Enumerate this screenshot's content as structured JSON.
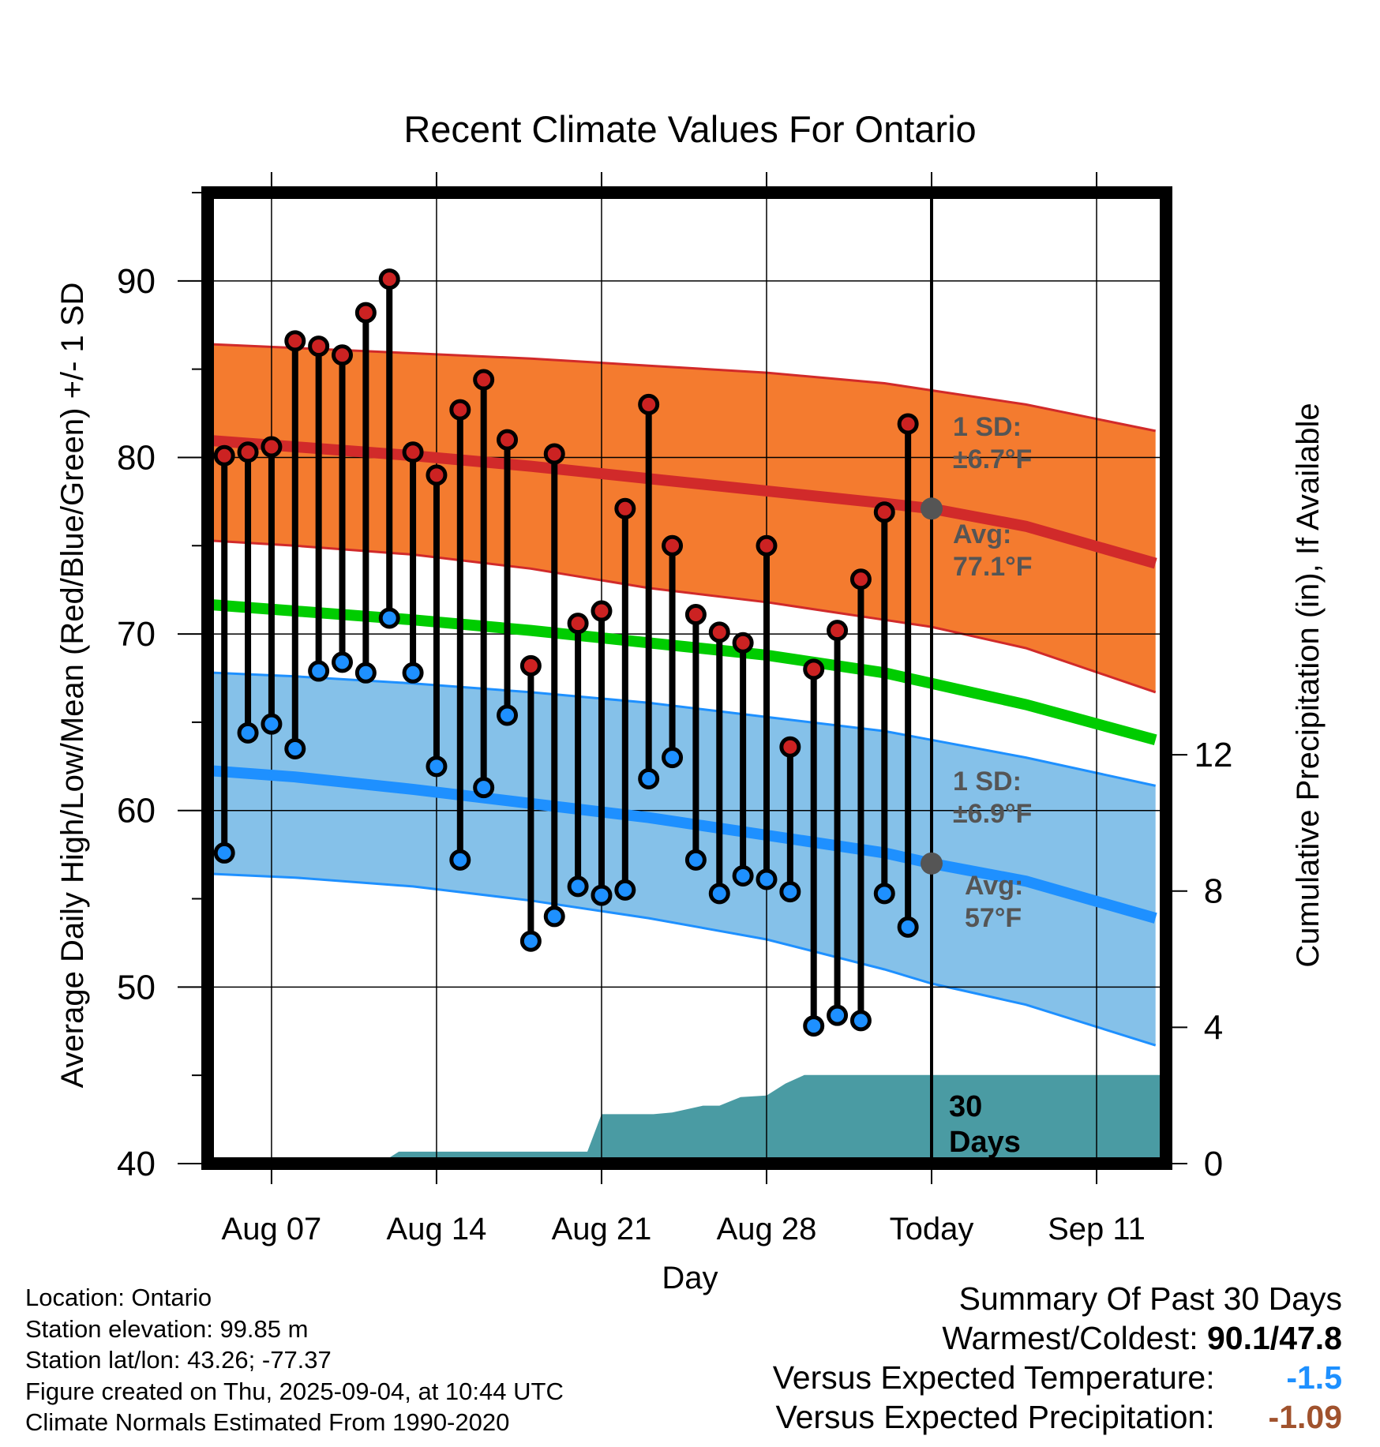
{
  "chart_data": {
    "type": "line",
    "title": "Recent Climate Values For Ontario",
    "xlabel": "Day",
    "ylabel": "Average Daily High/Low/Mean (Red/Blue/Green) +/- 1 SD",
    "y2label": "Cumulative Precipitation (in), If Available",
    "ylim": [
      40,
      95
    ],
    "y_ticks": [
      40,
      50,
      60,
      70,
      80,
      90
    ],
    "y2lim": [
      0,
      28.5
    ],
    "y2_ticks": [
      0,
      4,
      8,
      12
    ],
    "xlim_days": [
      -32.1,
      9.8
    ],
    "x_ticks": [
      {
        "day": -28,
        "label": "Aug 07"
      },
      {
        "day": -21,
        "label": "Aug 14"
      },
      {
        "day": -14,
        "label": "Aug 21"
      },
      {
        "day": -7,
        "label": "Aug 28"
      },
      {
        "day": 0,
        "label": "Today"
      },
      {
        "day": 7,
        "label": "Sep 11"
      }
    ],
    "grid": true,
    "colors": {
      "high_band": "#f47b2f",
      "high_line": "#d12a2a",
      "low_band": "#85c1e9",
      "low_line": "#1e90ff",
      "mean_line": "#00cc00",
      "precip": "#4a9ba3",
      "high_marker": "#cc2222",
      "low_marker": "#1e90ff",
      "today_marker": "#555555",
      "annotation_text": "#555555",
      "summary_temp": "#1e90ff",
      "summary_precip": "#a0522d"
    },
    "normals": {
      "day": [
        -32,
        -27,
        -22,
        -17,
        -12,
        -7,
        -2,
        0,
        4,
        9.5
      ],
      "high_upper": [
        86.5,
        86.2,
        85.9,
        85.6,
        85.2,
        84.8,
        84.2,
        83.8,
        83.0,
        81.5
      ],
      "high_mean": [
        81.1,
        80.6,
        80.1,
        79.5,
        78.8,
        78.1,
        77.4,
        77.1,
        76.1,
        74.0
      ],
      "high_lower": [
        75.4,
        75.0,
        74.5,
        73.7,
        72.6,
        71.8,
        70.8,
        70.4,
        69.2,
        66.7
      ],
      "mean": [
        71.8,
        71.3,
        70.8,
        70.2,
        69.5,
        68.8,
        67.8,
        67.2,
        66.0,
        64.0
      ],
      "low_upper": [
        67.9,
        67.6,
        67.2,
        66.7,
        66.1,
        65.3,
        64.5,
        64.0,
        63.0,
        61.4
      ],
      "low_mean": [
        62.4,
        61.9,
        61.2,
        60.4,
        59.6,
        58.6,
        57.6,
        57.0,
        56.0,
        53.9
      ],
      "low_lower": [
        56.5,
        56.2,
        55.7,
        54.9,
        53.9,
        52.7,
        51.0,
        50.2,
        49.0,
        46.7
      ]
    },
    "observed": {
      "day": [
        -30,
        -29,
        -28,
        -27,
        -26,
        -25,
        -24,
        -23,
        -22,
        -21,
        -20,
        -19,
        -18,
        -17,
        -16,
        -15,
        -14,
        -13,
        -12,
        -11,
        -10,
        -9,
        -8,
        -7,
        -6,
        -5,
        -4,
        -3,
        -2,
        -1
      ],
      "high": [
        80.1,
        80.3,
        80.6,
        86.6,
        86.3,
        85.8,
        88.2,
        90.1,
        80.3,
        79.0,
        82.7,
        84.4,
        81.0,
        68.2,
        80.2,
        70.6,
        71.3,
        77.1,
        83.0,
        75.0,
        71.1,
        70.1,
        69.5,
        75.0,
        63.6,
        68.0,
        70.2,
        73.1,
        76.9,
        81.9
      ],
      "low": [
        57.6,
        64.4,
        64.9,
        63.5,
        67.9,
        68.4,
        67.8,
        70.9,
        67.8,
        62.5,
        57.2,
        61.3,
        65.4,
        52.6,
        54.0,
        55.7,
        55.2,
        55.5,
        61.8,
        63.0,
        57.2,
        55.3,
        56.3,
        56.1,
        55.4,
        47.8,
        48.4,
        48.1,
        55.3,
        53.4
      ]
    },
    "precip": {
      "day": [
        -32.1,
        -23.4,
        -22.6,
        -18,
        -17.4,
        -14.6,
        -14,
        -11.8,
        -11,
        -9.7,
        -9,
        -8.1,
        -7,
        -6.2,
        -5.4,
        0,
        9.8
      ],
      "value": [
        0,
        0,
        0.35,
        0.35,
        0.35,
        0.35,
        1.45,
        1.45,
        1.5,
        1.7,
        1.7,
        1.95,
        2.0,
        2.35,
        2.6,
        2.6,
        2.6
      ]
    },
    "annotations": {
      "high_sd": [
        "1 SD:",
        "±6.7°F"
      ],
      "high_avg": [
        "Avg:",
        "77.1°F"
      ],
      "low_sd": [
        "1 SD:",
        "±6.9°F"
      ],
      "low_avg": [
        "Avg:",
        "57°F"
      ],
      "window": [
        "30",
        "Days"
      ]
    },
    "today_values": {
      "high_avg": 77.1,
      "low_avg": 57.0
    }
  },
  "footer": {
    "location": "Location: Ontario",
    "elevation": "Station elevation: 99.85 m",
    "latlon": "Station lat/lon: 43.26; -77.37",
    "created": "Figure created on Thu, 2025-09-04, at 10:44 UTC",
    "normals": "Climate Normals Estimated From 1990-2020"
  },
  "summary": {
    "title": "Summary Of Past 30 Days",
    "warmest_label": "Warmest/Coldest:",
    "warmest_value": "90.1/47.8",
    "temp_label": "Versus Expected Temperature:",
    "temp_value": "-1.5",
    "precip_label": "Versus Expected Precipitation:",
    "precip_value": "-1.09"
  }
}
